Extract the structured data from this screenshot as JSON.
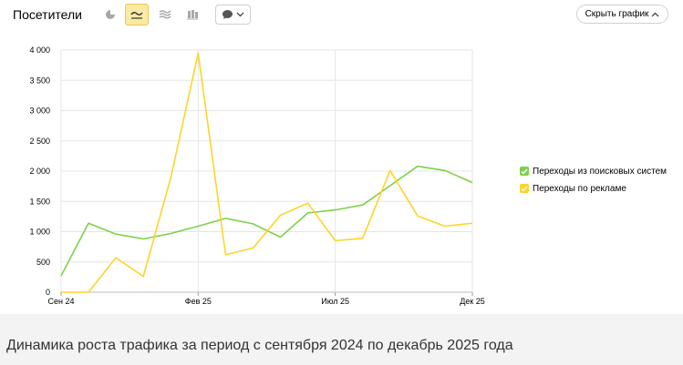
{
  "toolbar": {
    "title": "Посетители",
    "hide_label": "Скрыть график",
    "icons": [
      "pie-chart-icon",
      "line-chart-icon",
      "area-chart-icon",
      "bar-chart-icon",
      "comment-icon"
    ],
    "active_color": "#fde9a4"
  },
  "caption": "Динамика роста трафика за период с сентября 2024 по декабрь 2025 года",
  "chart_data": {
    "type": "line",
    "x": [
      "2024-09",
      "2024-10",
      "2024-11",
      "2024-12",
      "2025-01",
      "2025-02",
      "2025-03",
      "2025-04",
      "2025-05",
      "2025-06",
      "2025-07",
      "2025-08",
      "2025-09",
      "2025-10",
      "2025-11",
      "2025-12"
    ],
    "x_tick_labels": [
      {
        "x": "2024-09",
        "label": "Сен 24"
      },
      {
        "x": "2025-02",
        "label": "Фев 25"
      },
      {
        "x": "2025-07",
        "label": "Июл 25"
      },
      {
        "x": "2025-12",
        "label": "Дек 25"
      }
    ],
    "y_ticks": [
      0,
      500,
      1000,
      1500,
      2000,
      2500,
      3000,
      3500,
      4000
    ],
    "y_tick_labels": [
      "0",
      "500",
      "1 000",
      "1 500",
      "2 000",
      "2 500",
      "3 000",
      "3 500",
      "4 000"
    ],
    "ylim": [
      0,
      4000
    ],
    "series": [
      {
        "name": "Переходы из поисковых систем",
        "color": "#7ed04b",
        "values": [
          270,
          1140,
          960,
          880,
          970,
          1090,
          1220,
          1130,
          910,
          1310,
          1360,
          1440,
          1760,
          2080,
          2010,
          1810
        ]
      },
      {
        "name": "Переходы по рекламе",
        "color": "#ffd426",
        "values": [
          0,
          0,
          570,
          260,
          1890,
          3950,
          620,
          730,
          1270,
          1470,
          850,
          890,
          2010,
          1260,
          1090,
          1140
        ]
      }
    ],
    "legend_position": "right",
    "grid": true
  }
}
